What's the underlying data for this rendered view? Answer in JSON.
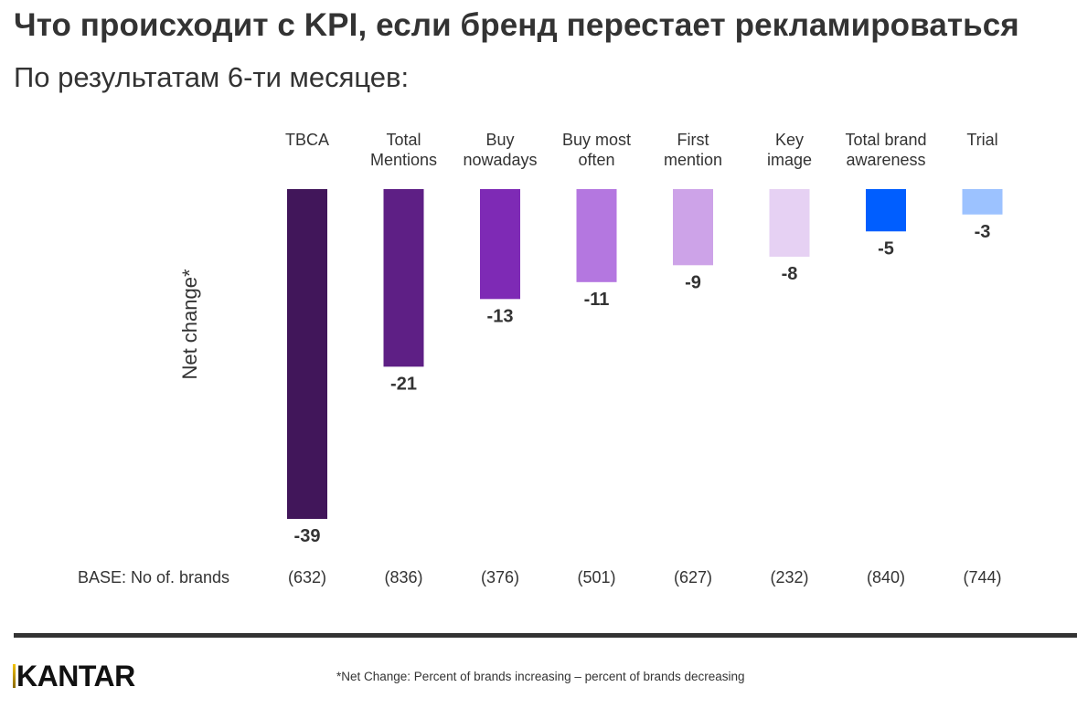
{
  "header": {
    "title": "Что происходит с KPI, если бренд перестает рекламироваться",
    "subtitle": "По результатам 6-ти месяцев:"
  },
  "chart_data": {
    "type": "bar",
    "title": "Что происходит с KPI, если бренд перестает рекламироваться",
    "subtitle": "По результатам 6-ти месяцев:",
    "xlabel": "",
    "ylabel": "Net change*",
    "categories": [
      [
        "TBCA"
      ],
      [
        "Total",
        "Mentions"
      ],
      [
        "Buy",
        "nowadays"
      ],
      [
        "Buy most",
        "often"
      ],
      [
        "First",
        "mention"
      ],
      [
        "Key",
        "image"
      ],
      [
        "Total brand",
        "awareness"
      ],
      [
        "Trial"
      ]
    ],
    "values": [
      -39,
      -21,
      -13,
      -11,
      -9,
      -8,
      -5,
      -3
    ],
    "value_labels": [
      "-39",
      "-21",
      "-13",
      "-11",
      "-9",
      "-8",
      "-5",
      "-3"
    ],
    "colors": [
      "#41165a",
      "#5e1f85",
      "#7e2ab5",
      "#b477e0",
      "#cda3e8",
      "#e6d1f3",
      "#005eff",
      "#9cc2ff"
    ],
    "ylim": [
      -39,
      0
    ],
    "grid": false,
    "legend": "none",
    "base": {
      "label": "BASE: No of. brands",
      "values": [
        "(632)",
        "(836)",
        "(376)",
        "(501)",
        "(627)",
        "(232)",
        "(840)",
        "(744)"
      ]
    }
  },
  "footer": {
    "logo": "KANTAR",
    "footnote": "*Net Change: Percent of brands increasing – percent of brands decreasing"
  }
}
